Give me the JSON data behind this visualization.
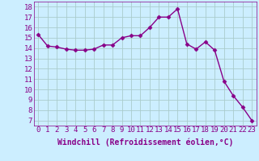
{
  "x": [
    0,
    1,
    2,
    3,
    4,
    5,
    6,
    7,
    8,
    9,
    10,
    11,
    12,
    13,
    14,
    15,
    16,
    17,
    18,
    19,
    20,
    21,
    22,
    23
  ],
  "y": [
    15.3,
    14.2,
    14.1,
    13.9,
    13.8,
    13.8,
    13.9,
    14.3,
    14.3,
    15.0,
    15.2,
    15.2,
    16.0,
    17.0,
    17.0,
    17.8,
    14.4,
    13.9,
    14.6,
    13.8,
    10.8,
    9.4,
    8.3,
    7.0
  ],
  "xlim": [
    -0.5,
    23.5
  ],
  "ylim": [
    6.5,
    18.5
  ],
  "yticks": [
    7,
    8,
    9,
    10,
    11,
    12,
    13,
    14,
    15,
    16,
    17,
    18
  ],
  "xticks": [
    0,
    1,
    2,
    3,
    4,
    5,
    6,
    7,
    8,
    9,
    10,
    11,
    12,
    13,
    14,
    15,
    16,
    17,
    18,
    19,
    20,
    21,
    22,
    23
  ],
  "xlabel": "Windchill (Refroidissement éolien,°C)",
  "line_color": "#880088",
  "marker": "D",
  "marker_size": 2.5,
  "bg_color": "#cceeff",
  "grid_color": "#aacccc",
  "xlabel_fontsize": 7,
  "tick_fontsize": 6.5,
  "line_width": 1.0
}
